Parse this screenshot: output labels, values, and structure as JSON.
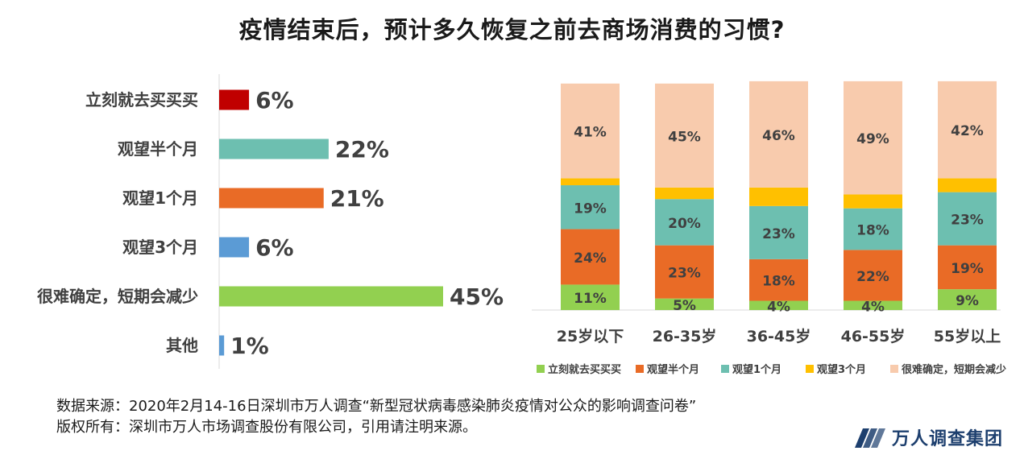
{
  "title": "疫情结束后，预计多久恢复之前去商场消费的习惯?",
  "chart_data": [
    {
      "type": "bar",
      "orientation": "horizontal",
      "categories": [
        "立刻就去买买买",
        "观望半个月",
        "观望1个月",
        "观望3个月",
        "很难确定，短期会减少",
        "其他"
      ],
      "values": [
        6,
        22,
        21,
        6,
        45,
        1
      ],
      "value_labels": [
        "6%",
        "22%",
        "21%",
        "6%",
        "45%",
        "1%"
      ],
      "colors": [
        "#c00000",
        "#6dbfb0",
        "#e96b26",
        "#5b9bd5",
        "#92d050",
        "#5b9bd5"
      ],
      "xlim": [
        0,
        45
      ]
    },
    {
      "type": "bar",
      "stacked": true,
      "categories": [
        "25岁以下",
        "26-35岁",
        "36-45岁",
        "46-55岁",
        "55岁以上"
      ],
      "series": [
        {
          "name": "立刻就去买买买",
          "color": "#92d050",
          "values": [
            11,
            5,
            4,
            4,
            9
          ],
          "labels": [
            "11%",
            "5%",
            "4%",
            "4%",
            "9%"
          ]
        },
        {
          "name": "观望半个月",
          "color": "#e96b26",
          "values": [
            24,
            23,
            18,
            22,
            19
          ],
          "labels": [
            "24%",
            "23%",
            "18%",
            "22%",
            "19%"
          ]
        },
        {
          "name": "观望1个月",
          "color": "#6dbfb0",
          "values": [
            19,
            20,
            23,
            18,
            23
          ],
          "labels": [
            "19%",
            "20%",
            "23%",
            "18%",
            "23%"
          ]
        },
        {
          "name": "观望3个月",
          "color": "#ffc000",
          "values": [
            3,
            5,
            8,
            6,
            6
          ],
          "labels": [
            "",
            "",
            "",
            "",
            ""
          ]
        },
        {
          "name": "很难确定，短期会减少",
          "color": "#f8cbad",
          "values": [
            41,
            45,
            46,
            49,
            42
          ],
          "labels": [
            "41%",
            "45%",
            "46%",
            "49%",
            "42%"
          ]
        }
      ],
      "ylim": [
        0,
        100
      ],
      "legend": "bottom"
    }
  ],
  "footer": {
    "source": "数据来源：2020年2月14-16日深圳市万人调查“新型冠状病毒感染肺炎疫情对公众的影响调查问卷”",
    "copyright": "版权所有：深圳市万人市场调查股份有限公司，引用请注明来源。"
  },
  "logo": {
    "text": "万人调查集团",
    "icon": "wanren-logo-icon"
  }
}
